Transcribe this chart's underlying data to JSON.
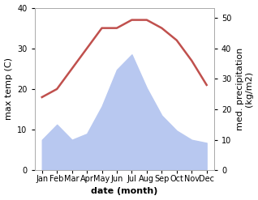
{
  "months": [
    "Jan",
    "Feb",
    "Mar",
    "Apr",
    "May",
    "Jun",
    "Jul",
    "Aug",
    "Sep",
    "Oct",
    "Nov",
    "Dec"
  ],
  "temperature": [
    18,
    20,
    25,
    30,
    35,
    35,
    37,
    37,
    35,
    32,
    27,
    21
  ],
  "precipitation_mm": [
    10,
    15,
    10,
    12,
    21,
    33,
    38,
    27,
    18,
    13,
    10,
    9
  ],
  "temp_color": "#c0504d",
  "precip_color": "#b8c8f0",
  "temp_ylim": [
    0,
    40
  ],
  "precip_ylim": [
    0,
    53.33
  ],
  "left_ylim": [
    0,
    40
  ],
  "xlabel": "date (month)",
  "ylabel_left": "max temp (C)",
  "ylabel_right": "med. precipitation\n(kg/m2)",
  "fig_color": "#ffffff",
  "tick_fontsize": 7,
  "label_fontsize": 8
}
